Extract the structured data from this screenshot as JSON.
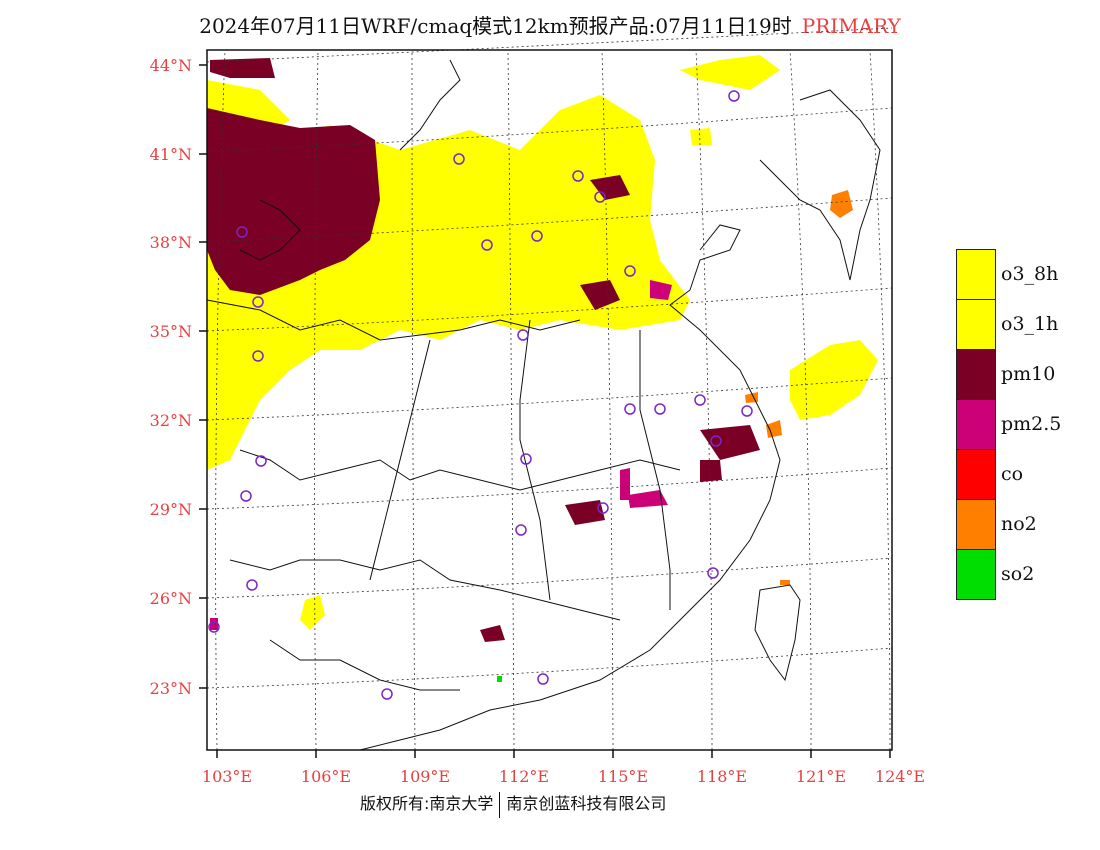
{
  "header": {
    "title": "2024年07月11日WRF/cmaq模式12km预报产品:07月11日19时",
    "tag": "PRIMARY"
  },
  "axes": {
    "lat_labels": [
      "44°N",
      "41°N",
      "38°N",
      "35°N",
      "32°N",
      "29°N",
      "26°N",
      "23°N"
    ],
    "lon_labels": [
      "103°E",
      "106°E",
      "109°E",
      "112°E",
      "115°E",
      "118°E",
      "121°E",
      "124°E"
    ],
    "label_color": "#e8403f"
  },
  "legend": {
    "items": [
      {
        "label": "o3_8h",
        "color": "#ffff00"
      },
      {
        "label": "o3_1h",
        "color": "#ffff00"
      },
      {
        "label": "pm10",
        "color": "#7a0026"
      },
      {
        "label": "pm2.5",
        "color": "#cc0077"
      },
      {
        "label": "co",
        "color": "#ff0000"
      },
      {
        "label": "no2",
        "color": "#ff7f00"
      },
      {
        "label": "so2",
        "color": "#00dd00"
      }
    ]
  },
  "footer": {
    "left": "版权所有:南京大学",
    "right": "南京创蓝科技有限公司"
  }
}
